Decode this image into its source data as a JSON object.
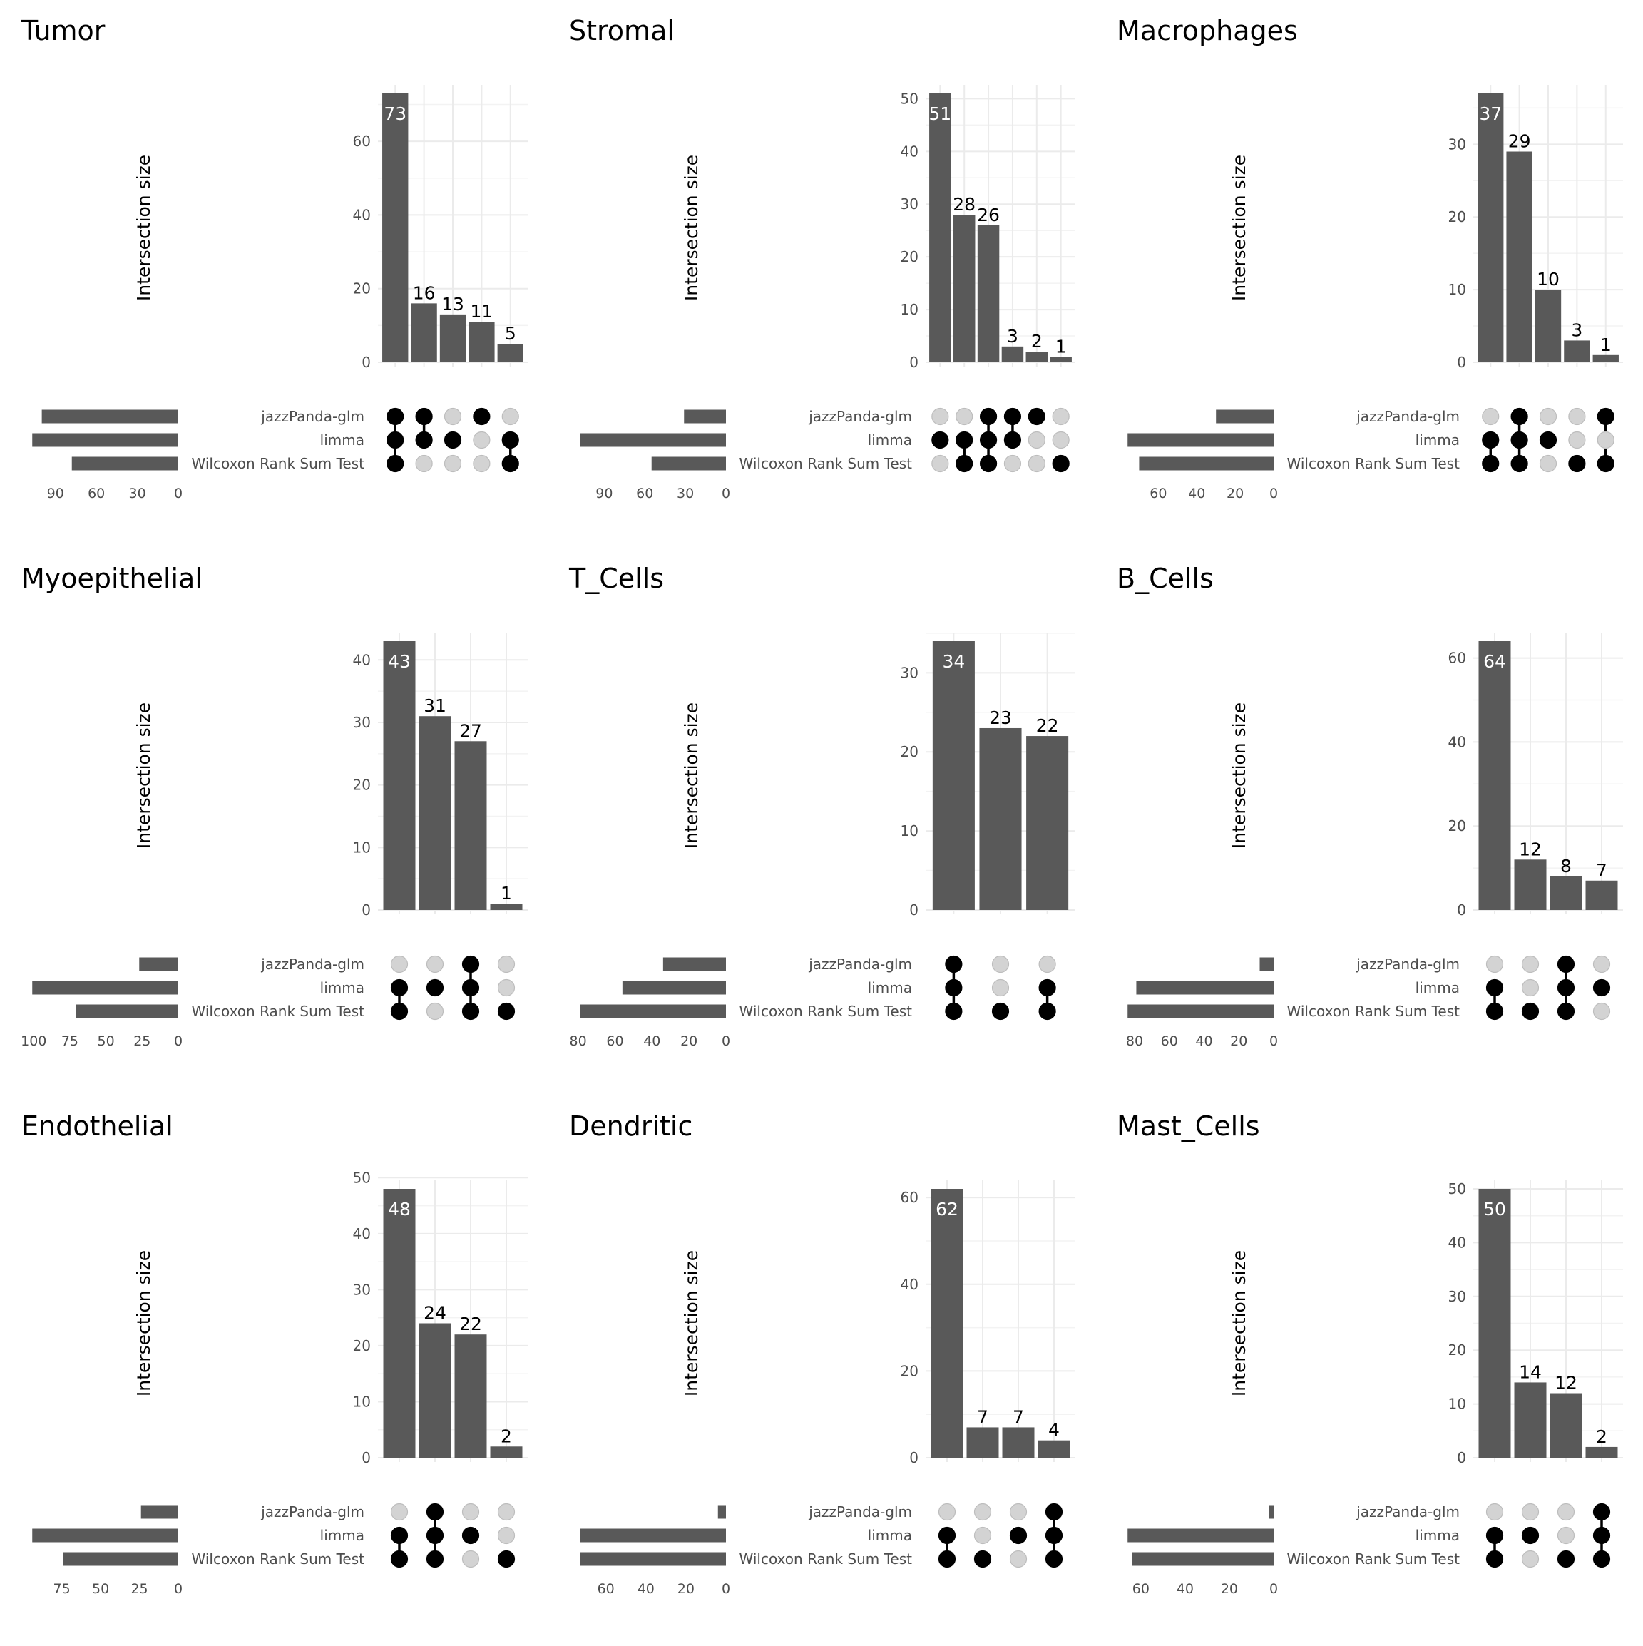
{
  "chart_data": [
    {
      "type": "upset",
      "title": "Tumor",
      "ylabel": "Intersection size",
      "y_ticks": [
        0,
        20,
        40,
        60
      ],
      "ymax": 73,
      "sets": [
        "jazzPanda-glm",
        "limma",
        "Wilcoxon Rank Sum Test"
      ],
      "set_sizes": [
        100,
        107,
        78
      ],
      "set_size_ticks": [
        90,
        60,
        30,
        0
      ],
      "intersections": [
        {
          "sets": [
            0,
            1,
            2
          ],
          "size": 73
        },
        {
          "sets": [
            0,
            1
          ],
          "size": 16
        },
        {
          "sets": [
            1
          ],
          "size": 13
        },
        {
          "sets": [
            0
          ],
          "size": 11
        },
        {
          "sets": [
            1,
            2
          ],
          "size": 5
        }
      ]
    },
    {
      "type": "upset",
      "title": "Stromal",
      "ylabel": "Intersection size",
      "y_ticks": [
        0,
        10,
        20,
        30,
        40,
        50
      ],
      "ymax": 51,
      "sets": [
        "jazzPanda-glm",
        "limma",
        "Wilcoxon Rank Sum Test"
      ],
      "set_sizes": [
        31,
        108,
        55
      ],
      "set_size_ticks": [
        90,
        60,
        30,
        0
      ],
      "intersections": [
        {
          "sets": [
            1
          ],
          "size": 51
        },
        {
          "sets": [
            1,
            2
          ],
          "size": 28
        },
        {
          "sets": [
            0,
            1,
            2
          ],
          "size": 26
        },
        {
          "sets": [
            0,
            1
          ],
          "size": 3
        },
        {
          "sets": [
            0
          ],
          "size": 2
        },
        {
          "sets": [
            2
          ],
          "size": 1
        }
      ]
    },
    {
      "type": "upset",
      "title": "Macrophages",
      "ylabel": "Intersection size",
      "y_ticks": [
        0,
        10,
        20,
        30
      ],
      "ymax": 37,
      "sets": [
        "jazzPanda-glm",
        "limma",
        "Wilcoxon Rank Sum Test"
      ],
      "set_sizes": [
        30,
        76,
        70
      ],
      "set_size_ticks": [
        60,
        40,
        20,
        0
      ],
      "intersections": [
        {
          "sets": [
            1,
            2
          ],
          "size": 37
        },
        {
          "sets": [
            0,
            1,
            2
          ],
          "size": 29
        },
        {
          "sets": [
            1
          ],
          "size": 10
        },
        {
          "sets": [
            2
          ],
          "size": 3
        },
        {
          "sets": [
            0,
            2
          ],
          "size": 1
        }
      ]
    },
    {
      "type": "upset",
      "title": "Myoepithelial",
      "ylabel": "Intersection size",
      "y_ticks": [
        0,
        10,
        20,
        30,
        40
      ],
      "ymax": 43,
      "sets": [
        "jazzPanda-glm",
        "limma",
        "Wilcoxon Rank Sum Test"
      ],
      "set_sizes": [
        27,
        101,
        71
      ],
      "set_size_ticks": [
        100,
        75,
        50,
        25,
        0
      ],
      "intersections": [
        {
          "sets": [
            1,
            2
          ],
          "size": 43
        },
        {
          "sets": [
            1
          ],
          "size": 31
        },
        {
          "sets": [
            0,
            1,
            2
          ],
          "size": 27
        },
        {
          "sets": [
            2
          ],
          "size": 1
        }
      ]
    },
    {
      "type": "upset",
      "title": "T_Cells",
      "ylabel": "Intersection size",
      "y_ticks": [
        0,
        10,
        20,
        30
      ],
      "ymax": 34,
      "sets": [
        "jazzPanda-glm",
        "limma",
        "Wilcoxon Rank Sum Test"
      ],
      "set_sizes": [
        34,
        56,
        79
      ],
      "set_size_ticks": [
        80,
        60,
        40,
        20,
        0
      ],
      "intersections": [
        {
          "sets": [
            0,
            1,
            2
          ],
          "size": 34
        },
        {
          "sets": [
            2
          ],
          "size": 23
        },
        {
          "sets": [
            1,
            2
          ],
          "size": 22
        }
      ]
    },
    {
      "type": "upset",
      "title": "B_Cells",
      "ylabel": "Intersection size",
      "y_ticks": [
        0,
        20,
        40,
        60
      ],
      "ymax": 64,
      "sets": [
        "jazzPanda-glm",
        "limma",
        "Wilcoxon Rank Sum Test"
      ],
      "set_sizes": [
        8,
        79,
        84
      ],
      "set_size_ticks": [
        80,
        60,
        40,
        20,
        0
      ],
      "intersections": [
        {
          "sets": [
            1,
            2
          ],
          "size": 64
        },
        {
          "sets": [
            2
          ],
          "size": 12
        },
        {
          "sets": [
            0,
            1,
            2
          ],
          "size": 8
        },
        {
          "sets": [
            1
          ],
          "size": 7
        }
      ]
    },
    {
      "type": "upset",
      "title": "Endothelial",
      "ylabel": "Intersection size",
      "y_ticks": [
        0,
        10,
        20,
        30,
        40,
        50
      ],
      "ymax": 48,
      "sets": [
        "jazzPanda-glm",
        "limma",
        "Wilcoxon Rank Sum Test"
      ],
      "set_sizes": [
        24,
        94,
        74
      ],
      "set_size_ticks": [
        75,
        50,
        25,
        0
      ],
      "intersections": [
        {
          "sets": [
            1,
            2
          ],
          "size": 48
        },
        {
          "sets": [
            0,
            1,
            2
          ],
          "size": 24
        },
        {
          "sets": [
            1
          ],
          "size": 22
        },
        {
          "sets": [
            2
          ],
          "size": 2
        }
      ]
    },
    {
      "type": "upset",
      "title": "Dendritic",
      "ylabel": "Intersection size",
      "y_ticks": [
        0,
        20,
        40,
        60
      ],
      "ymax": 62,
      "sets": [
        "jazzPanda-glm",
        "limma",
        "Wilcoxon Rank Sum Test"
      ],
      "set_sizes": [
        4,
        73,
        73
      ],
      "set_size_ticks": [
        60,
        40,
        20,
        0
      ],
      "intersections": [
        {
          "sets": [
            1,
            2
          ],
          "size": 62
        },
        {
          "sets": [
            2
          ],
          "size": 7
        },
        {
          "sets": [
            1
          ],
          "size": 7
        },
        {
          "sets": [
            0,
            1,
            2
          ],
          "size": 4
        }
      ]
    },
    {
      "type": "upset",
      "title": "Mast_Cells",
      "ylabel": "Intersection size",
      "y_ticks": [
        0,
        10,
        20,
        30,
        40,
        50
      ],
      "ymax": 50,
      "sets": [
        "jazzPanda-glm",
        "limma",
        "Wilcoxon Rank Sum Test"
      ],
      "set_sizes": [
        2,
        66,
        64
      ],
      "set_size_ticks": [
        60,
        40,
        20,
        0
      ],
      "intersections": [
        {
          "sets": [
            1,
            2
          ],
          "size": 50
        },
        {
          "sets": [
            1
          ],
          "size": 14
        },
        {
          "sets": [
            2
          ],
          "size": 12
        },
        {
          "sets": [
            0,
            1,
            2
          ],
          "size": 2
        }
      ]
    }
  ],
  "colors": {
    "bar": "#595959",
    "active_dot": "#000000",
    "inactive_dot": "#d3d3d3",
    "grid": "#ebebeb",
    "label": "#4d4d4d"
  }
}
